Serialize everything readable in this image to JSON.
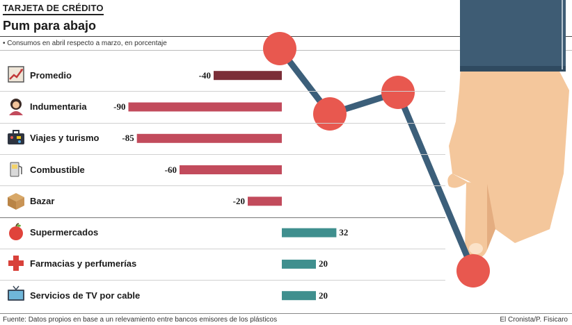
{
  "header": {
    "kicker": "TARJETA DE CRÉDITO",
    "title": "Pum para abajo",
    "subtitle": "• Consumos en abril respecto a marzo, en porcentaje"
  },
  "footer": {
    "source": "Fuente: Datos propios en base a un relevamiento entre bancos emisores de los plásticos",
    "credit": "El Cronista/P. Fisicaro"
  },
  "colors": {
    "promedio": "#7b2e38",
    "negative": "#c24b5c",
    "positive": "#3f8f8e",
    "line": "#3c5f7a",
    "dot": "#e8584f",
    "sleeve": "#3e5c74",
    "skin": "#f4c79c"
  },
  "chart_data": {
    "type": "bar",
    "orientation": "horizontal",
    "title": "Pum para abajo",
    "subtitle": "Consumos en abril respecto a marzo, en porcentaje",
    "xlim": [
      -90,
      32
    ],
    "categories": [
      {
        "label": "Promedio",
        "value": -40,
        "value_label": "-40",
        "icon": "chart-icon"
      },
      {
        "label": "Indumentaria",
        "value": -90,
        "value_label": "-90",
        "icon": "woman-icon"
      },
      {
        "label": "Viajes y turismo",
        "value": -85,
        "value_label": "-85",
        "icon": "suitcase-icon"
      },
      {
        "label": "Combustible",
        "value": -60,
        "value_label": "-60",
        "icon": "fuel-pump-icon"
      },
      {
        "label": "Bazar",
        "value": -20,
        "value_label": "-20",
        "icon": "box-icon"
      },
      {
        "label": "Supermercados",
        "value": 32,
        "value_label": "32",
        "icon": "apple-icon"
      },
      {
        "label": "Farmacias y perfumerías",
        "value": 20,
        "value_label": "20",
        "icon": "cross-icon"
      },
      {
        "label": "Servicios de TV por cable",
        "value": 20,
        "value_label": "20",
        "icon": "tv-icon"
      }
    ]
  }
}
